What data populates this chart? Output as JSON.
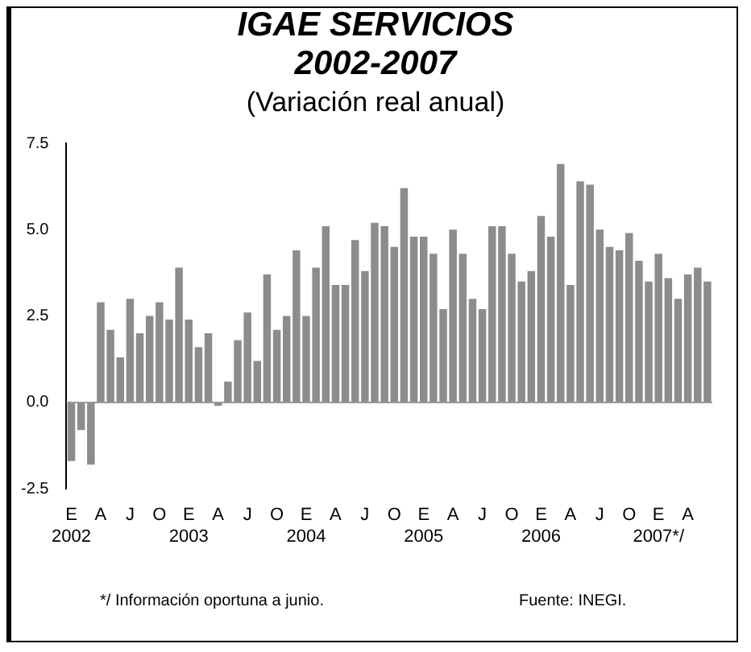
{
  "chart_data": {
    "type": "bar",
    "title": "IGAE SERVICIOS\n2002-2007",
    "subtitle": "(Variación real anual)",
    "categories": [
      "E\n2002",
      null,
      null,
      "A",
      null,
      null,
      "J",
      null,
      null,
      "O",
      null,
      null,
      "E\n2003",
      null,
      null,
      "A",
      null,
      null,
      "J",
      null,
      null,
      "O",
      null,
      null,
      "E\n2004",
      null,
      null,
      "A",
      null,
      null,
      "J",
      null,
      null,
      "O",
      null,
      null,
      "E\n2005",
      null,
      null,
      "A",
      null,
      null,
      "J",
      null,
      null,
      "O",
      null,
      null,
      "E\n2006",
      null,
      null,
      "A",
      null,
      null,
      "J",
      null,
      null,
      "O",
      null,
      null,
      "E\n2007*/",
      null,
      null,
      "A",
      null,
      null
    ],
    "values": [
      -1.7,
      -0.8,
      -1.8,
      2.9,
      2.1,
      1.3,
      3.0,
      2.0,
      2.5,
      2.9,
      2.4,
      3.9,
      2.4,
      1.6,
      2.0,
      -0.1,
      0.6,
      1.8,
      2.6,
      1.2,
      3.7,
      2.1,
      2.5,
      4.4,
      2.5,
      3.9,
      5.1,
      3.4,
      3.4,
      4.7,
      3.8,
      5.2,
      5.1,
      4.5,
      6.2,
      4.8,
      4.8,
      4.3,
      2.7,
      5.0,
      4.3,
      3.0,
      2.7,
      5.1,
      5.1,
      4.3,
      3.5,
      3.8,
      5.4,
      4.8,
      6.9,
      3.4,
      6.4,
      6.3,
      5.0,
      4.5,
      4.4,
      4.9,
      4.1,
      3.5,
      4.3,
      3.6,
      3.0,
      3.7,
      3.9,
      3.5
    ],
    "color": "#8c8c8c",
    "ylim": [
      -2.5,
      7.5
    ],
    "yticks": [
      {
        "value": -2.5,
        "label": "-2.5"
      },
      {
        "value": 0,
        "label": "0.0"
      },
      {
        "value": 2.5,
        "label": "2.5"
      },
      {
        "value": 5,
        "label": "5.0"
      },
      {
        "value": 7.5,
        "label": "7.5"
      }
    ],
    "grid": false,
    "legend": false,
    "ref_lines": [
      {
        "axis": "y",
        "value": 0,
        "color": "#999999"
      }
    ],
    "annotations": [
      "*/ Información oportuna a junio.",
      "Fuente: INEGI."
    ]
  }
}
